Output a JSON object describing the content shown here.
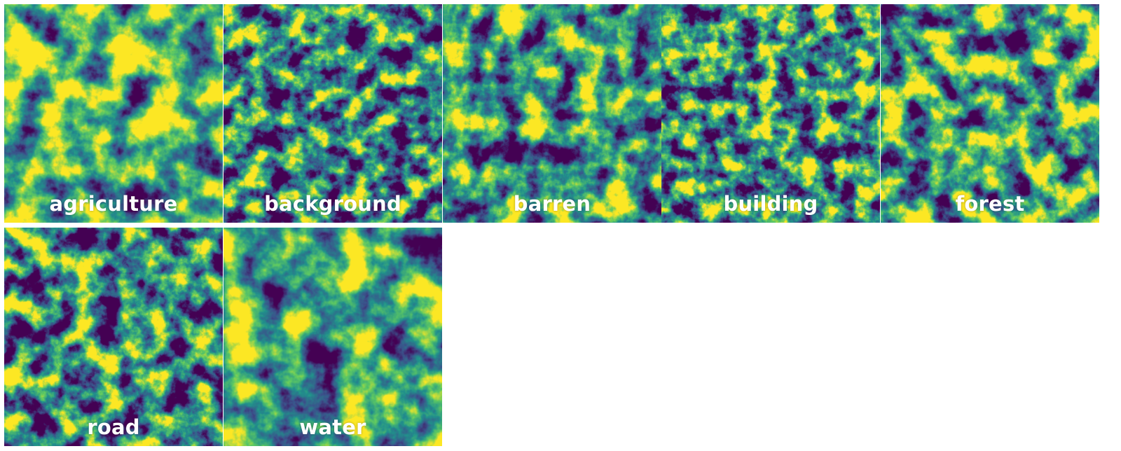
{
  "tiles": [
    {
      "label": "agriculture",
      "seed": 3,
      "bias": 0.12,
      "scale": 0.02
    },
    {
      "label": "background",
      "seed": 11,
      "bias": -0.06,
      "scale": 0.034
    },
    {
      "label": "barren",
      "seed": 17,
      "bias": 0.02,
      "scale": 0.026
    },
    {
      "label": "building",
      "seed": 23,
      "bias": -0.02,
      "scale": 0.036
    },
    {
      "label": "forest",
      "seed": 29,
      "bias": 0.05,
      "scale": 0.028
    },
    {
      "label": "road",
      "seed": 37,
      "bias": -0.04,
      "scale": 0.03
    },
    {
      "label": "water",
      "seed": 43,
      "bias": 0.04,
      "scale": 0.018
    }
  ],
  "colormap": [
    "#440154",
    "#3b528b",
    "#21918c",
    "#5ec962",
    "#fde725"
  ]
}
